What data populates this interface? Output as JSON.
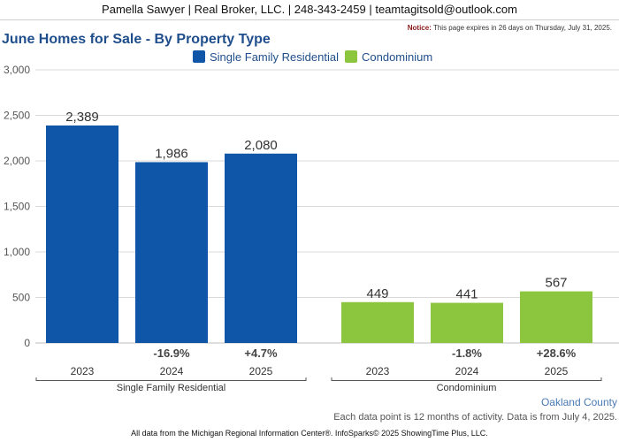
{
  "header": {
    "contact": "Pamella Sawyer | Real Broker, LLC. | 248-343-2459 | teamtagitsold@outlook.com",
    "notice_label": "Notice:",
    "notice_text": "This page expires in 26 days on Thursday, July 31, 2025."
  },
  "colors": {
    "single_family": "#0f55a8",
    "condominium": "#8cc63f",
    "title": "#1f4e8c"
  },
  "chart_data": {
    "type": "bar",
    "title": "June Homes for Sale - By Property Type",
    "ylim": [
      0,
      3000
    ],
    "yticks": [
      0,
      500,
      1000,
      1500,
      2000,
      2500,
      3000
    ],
    "ytick_labels": [
      "0",
      "500",
      "1,000",
      "1,500",
      "2,000",
      "2,500",
      "3,000"
    ],
    "legend": [
      "Single Family Residential",
      "Condominium"
    ],
    "legend_position": "top",
    "grid": true,
    "groups": [
      {
        "name": "Single Family Residential",
        "categories": [
          "2023",
          "2024",
          "2025"
        ],
        "values": [
          2389,
          1986,
          2080
        ],
        "value_labels": [
          "2,389",
          "1,986",
          "2,080"
        ],
        "changes": [
          "",
          "-16.9%",
          "+4.7%"
        ]
      },
      {
        "name": "Condominium",
        "categories": [
          "2023",
          "2024",
          "2025"
        ],
        "values": [
          449,
          441,
          567
        ],
        "value_labels": [
          "449",
          "441",
          "567"
        ],
        "changes": [
          "",
          "-1.8%",
          "+28.6%"
        ]
      }
    ]
  },
  "footer": {
    "county": "Oakland County",
    "note": "Each data point is 12 months of activity. Data is from July 4, 2025.",
    "source": "All data from the Michigan Regional Information Center®. InfoSparks© 2025 ShowingTime Plus, LLC."
  }
}
